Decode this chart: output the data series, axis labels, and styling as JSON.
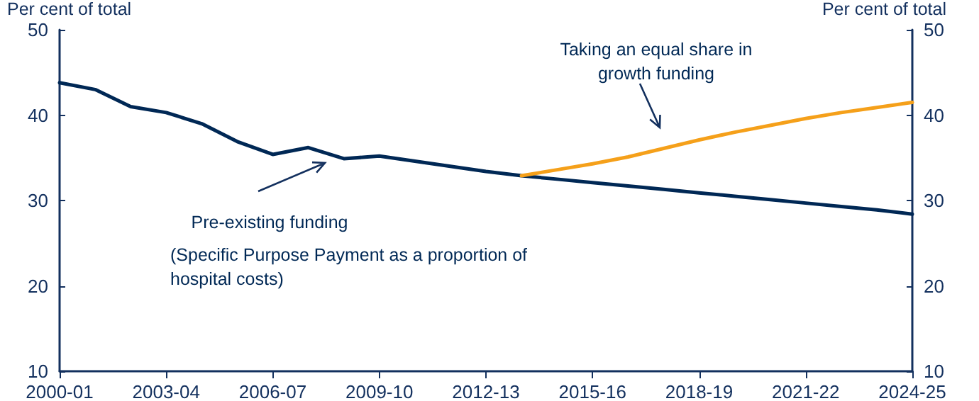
{
  "chart_data": {
    "type": "line",
    "ylabel": "Per cent of total",
    "y2label": "Per cent of total",
    "categories": [
      "2000-01",
      null,
      null,
      "2003-04",
      null,
      null,
      "2006-07",
      null,
      null,
      "2009-10",
      null,
      null,
      "2012-13",
      null,
      null,
      "2015-16",
      null,
      null,
      "2018-19",
      null,
      null,
      "2021-22",
      null,
      null,
      "2024-25"
    ],
    "series": [
      {
        "color": "#002855",
        "values": [
          43.8,
          43.0,
          41.0,
          40.3,
          39.0,
          36.9,
          35.4,
          36.2,
          34.9,
          35.2,
          34.6,
          34.0,
          33.4,
          32.9,
          32.5,
          32.1,
          31.7,
          31.3,
          30.9,
          30.5,
          30.1,
          29.7,
          29.3,
          28.9,
          28.4
        ]
      },
      {
        "color": "#f5a01a",
        "values": [
          null,
          null,
          null,
          null,
          null,
          null,
          null,
          null,
          null,
          null,
          null,
          null,
          null,
          32.9,
          33.6,
          34.3,
          35.1,
          36.1,
          37.1,
          38.0,
          38.8,
          39.6,
          40.3,
          40.9,
          41.5
        ]
      }
    ],
    "ylim": [
      10,
      50
    ],
    "yticks": [
      10,
      20,
      30,
      40,
      50
    ],
    "y2lim": [
      10,
      50
    ],
    "y2ticks": [
      10,
      20,
      30,
      40,
      50
    ],
    "grid": false,
    "marker": "none",
    "line_style": "solid",
    "annotations": [
      "Taking an equal share in growth funding",
      "Pre-existing funding",
      "(Specific Purpose Payment as a proportion of hospital costs)"
    ]
  }
}
